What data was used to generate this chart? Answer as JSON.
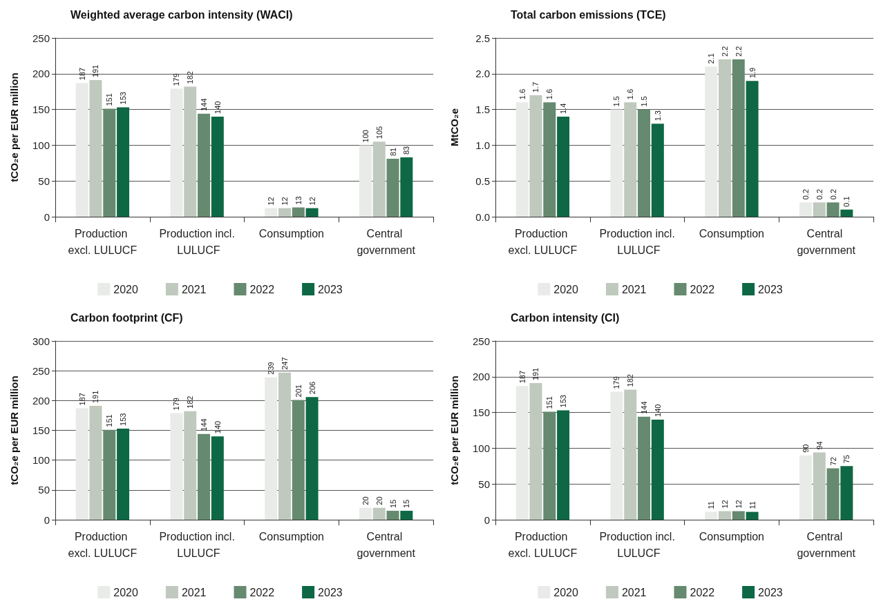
{
  "chart_data": [
    {
      "type": "bar",
      "title": "Weighted average carbon intensity (WACI)",
      "ylabel": "tCO₂e per EUR million",
      "categories": [
        "Production excl. LULUCF",
        "Production incl. LULUCF",
        "Consumption",
        "Central government"
      ],
      "series": [
        {
          "name": "2020",
          "color": "#e9ebe8",
          "values": [
            187,
            179,
            12,
            100
          ]
        },
        {
          "name": "2021",
          "color": "#bfc9bd",
          "values": [
            191,
            182,
            12,
            105
          ]
        },
        {
          "name": "2022",
          "color": "#668a6f",
          "values": [
            151,
            144,
            13,
            81
          ]
        },
        {
          "name": "2023",
          "color": "#0e6845",
          "values": [
            153,
            140,
            12,
            83
          ]
        }
      ],
      "ylim": [
        0,
        250
      ],
      "yticks": [
        0,
        50,
        100,
        150,
        200,
        250
      ],
      "grid": "y",
      "legend": "bottom",
      "data_labels": true
    },
    {
      "type": "bar",
      "title": "Total carbon emissions (TCE)",
      "ylabel": "MtCO₂e",
      "categories": [
        "Production excl. LULUCF",
        "Production incl. LULUCF",
        "Consumption",
        "Central government"
      ],
      "series": [
        {
          "name": "2020",
          "color": "#e9ebe8",
          "values": [
            1.6,
            1.5,
            2.1,
            0.2
          ]
        },
        {
          "name": "2021",
          "color": "#bfc9bd",
          "values": [
            1.7,
            1.6,
            2.2,
            0.2
          ]
        },
        {
          "name": "2022",
          "color": "#668a6f",
          "values": [
            1.6,
            1.5,
            2.2,
            0.2
          ]
        },
        {
          "name": "2023",
          "color": "#0e6845",
          "values": [
            1.4,
            1.3,
            1.9,
            0.1
          ]
        }
      ],
      "ylim": [
        0,
        2.5
      ],
      "yticks": [
        {
          "value": 0,
          "label": "0.0"
        },
        {
          "value": 0.5,
          "label": "0.5"
        },
        {
          "value": 1,
          "label": "1.0"
        },
        {
          "value": 1.5,
          "label": "1.5"
        },
        {
          "value": 2,
          "label": "2.0"
        },
        {
          "value": 2.5,
          "label": "2.5"
        }
      ],
      "grid": "y",
      "legend": "bottom",
      "data_labels": true
    },
    {
      "type": "bar",
      "title": "Carbon footprint (CF)",
      "ylabel": "tCO₂e per EUR million",
      "categories": [
        "Production excl. LULUCF",
        "Production incl. LULUCF",
        "Consumption",
        "Central government"
      ],
      "series": [
        {
          "name": "2020",
          "color": "#e9ebe8",
          "values": [
            187,
            179,
            239,
            20
          ]
        },
        {
          "name": "2021",
          "color": "#bfc9bd",
          "values": [
            191,
            182,
            247,
            20
          ]
        },
        {
          "name": "2022",
          "color": "#668a6f",
          "values": [
            151,
            144,
            201,
            15
          ]
        },
        {
          "name": "2023",
          "color": "#0e6845",
          "values": [
            153,
            140,
            206,
            15
          ]
        }
      ],
      "ylim": [
        0,
        300
      ],
      "yticks": [
        0,
        50,
        100,
        150,
        200,
        250,
        300
      ],
      "grid": "y",
      "legend": "bottom",
      "data_labels": true
    },
    {
      "type": "bar",
      "title": "Carbon intensity (CI)",
      "ylabel": "tCO₂e per EUR million",
      "categories": [
        "Production excl. LULUCF",
        "Production incl. LULUCF",
        "Consumption",
        "Central government"
      ],
      "series": [
        {
          "name": "2020",
          "color": "#e9ebe8",
          "values": [
            187,
            179,
            11,
            90
          ]
        },
        {
          "name": "2021",
          "color": "#bfc9bd",
          "values": [
            191,
            182,
            12,
            94
          ]
        },
        {
          "name": "2022",
          "color": "#668a6f",
          "values": [
            151,
            144,
            12,
            72
          ]
        },
        {
          "name": "2023",
          "color": "#0e6845",
          "values": [
            153,
            140,
            11,
            75
          ]
        }
      ],
      "ylim": [
        0,
        250
      ],
      "yticks": [
        0,
        50,
        100,
        150,
        200,
        250
      ],
      "grid": "y",
      "legend": "bottom",
      "data_labels": true
    }
  ]
}
